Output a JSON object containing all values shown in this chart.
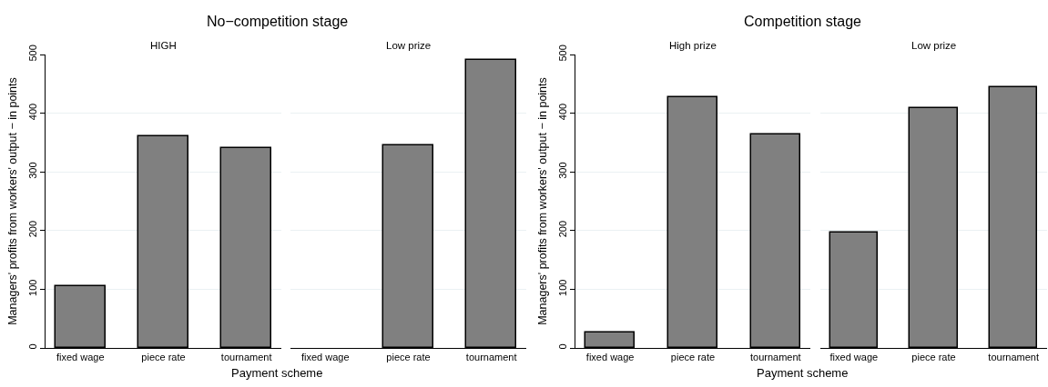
{
  "chart_data": [
    {
      "type": "bar",
      "title": "No−competition stage",
      "subtitle": "HIGH",
      "xlabel": "Payment scheme",
      "ylabel": "Managers' profits from workers' output − in points",
      "categories": [
        "fixed wage",
        "piece rate",
        "tournament"
      ],
      "values": [
        106,
        360,
        340
      ],
      "color": "#808080",
      "ylim": [
        0,
        500
      ],
      "yticks": [
        0,
        100,
        200,
        300,
        400,
        500
      ],
      "grid": "y"
    },
    {
      "type": "bar",
      "subtitle": "Low prize",
      "categories": [
        "fixed wage",
        "piece rate",
        "tournament"
      ],
      "values": [
        null,
        345,
        491
      ],
      "color": "#808080",
      "ylim": [
        0,
        500
      ],
      "yticks": [
        0,
        100,
        200,
        300,
        400,
        500
      ],
      "grid": "y",
      "tick_labels": "x"
    },
    {
      "type": "bar",
      "title": "Competition stage",
      "subtitle": "High prize",
      "xlabel": "Payment scheme",
      "ylabel": "Managers' profits from workers' output − in points",
      "categories": [
        "fixed wage",
        "piece rate",
        "tournament"
      ],
      "values": [
        26,
        427,
        364
      ],
      "color": "#808080",
      "ylim": [
        0,
        500
      ],
      "yticks": [
        0,
        100,
        200,
        300,
        400,
        500
      ],
      "grid": "y"
    },
    {
      "type": "bar",
      "subtitle": "Low prize",
      "categories": [
        "fixed wage",
        "piece rate",
        "tournament"
      ],
      "values": [
        196,
        408,
        444
      ],
      "color": "#808080",
      "ylim": [
        0,
        500
      ],
      "yticks": [
        0,
        100,
        200,
        300,
        400,
        500
      ],
      "grid": "y",
      "tick_labels": "x"
    }
  ]
}
